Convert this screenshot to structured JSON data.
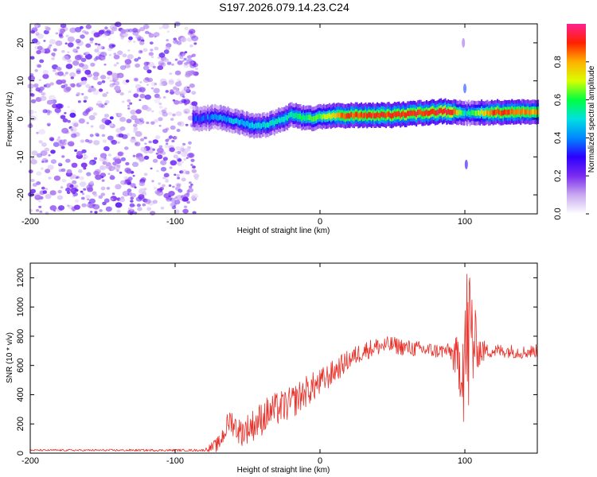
{
  "chart_data": [
    {
      "type": "heatmap",
      "title": "S197.2026.079.14.23.C24",
      "xlabel": "Height of straight line (km)",
      "ylabel": "Frequency (Hz)",
      "xlim": [
        -200,
        150
      ],
      "ylim": [
        -25,
        25
      ],
      "xticks": [
        -200,
        -100,
        0,
        100
      ],
      "xtick_labels": [
        "-200",
        "-100",
        "0",
        "100"
      ],
      "yticks": [
        -20,
        -10,
        0,
        10,
        20
      ],
      "ytick_labels": [
        "-20",
        "-10",
        "0",
        "10",
        "20"
      ],
      "grid": false,
      "colorbar": {
        "label": "Normalized spectral amplitude",
        "range": [
          0,
          1
        ],
        "ticks": [
          0.0,
          0.2,
          0.4,
          0.6,
          0.8
        ],
        "tick_labels": [
          "0.0",
          "0.2",
          "0.4",
          "0.6",
          "0.8"
        ],
        "colors": [
          "#ffffff",
          "#c8a8f0",
          "#7b2cf0",
          "#2b00ff",
          "#0088ff",
          "#00e0e0",
          "#00ff40",
          "#d8ff00",
          "#ffb000",
          "#ff2000",
          "#ff2090"
        ]
      },
      "noise_region_x": [
        -200,
        -85
      ],
      "noise_amplitude_range": [
        0.05,
        0.25
      ],
      "signal_band": {
        "center_freq_hz": [
          {
            "x": -85,
            "y": 0.0
          },
          {
            "x": -70,
            "y": 0.5
          },
          {
            "x": -55,
            "y": -1.0
          },
          {
            "x": -45,
            "y": -2.0
          },
          {
            "x": -35,
            "y": -1.5
          },
          {
            "x": -20,
            "y": 1.0
          },
          {
            "x": -10,
            "y": 0.0
          },
          {
            "x": 0,
            "y": 0.5
          },
          {
            "x": 20,
            "y": 1.0
          },
          {
            "x": 50,
            "y": 1.0
          },
          {
            "x": 85,
            "y": 2.0
          },
          {
            "x": 100,
            "y": 1.5
          },
          {
            "x": 150,
            "y": 2.0
          }
        ],
        "amplitude": [
          {
            "x": -85,
            "y": 0.35
          },
          {
            "x": -60,
            "y": 0.45
          },
          {
            "x": -40,
            "y": 0.5
          },
          {
            "x": -20,
            "y": 0.55
          },
          {
            "x": 0,
            "y": 0.65
          },
          {
            "x": 15,
            "y": 0.85
          },
          {
            "x": 40,
            "y": 0.9
          },
          {
            "x": 70,
            "y": 0.9
          },
          {
            "x": 90,
            "y": 0.95
          },
          {
            "x": 100,
            "y": 0.5
          },
          {
            "x": 120,
            "y": 0.9
          },
          {
            "x": 150,
            "y": 0.8
          }
        ]
      }
    },
    {
      "type": "line",
      "title": "",
      "xlabel": "Height of straight line (km)",
      "ylabel": "SNR (10 * v/v)",
      "xlim": [
        -200,
        150
      ],
      "ylim": [
        0,
        1300
      ],
      "xticks": [
        -200,
        -100,
        0,
        100
      ],
      "xtick_labels": [
        "-200",
        "-100",
        "0",
        "100"
      ],
      "yticks": [
        0,
        200,
        400,
        600,
        800,
        1000,
        1200
      ],
      "ytick_labels": [
        "0",
        "200",
        "400",
        "600",
        "800",
        "1000",
        "1200"
      ],
      "grid": false,
      "series": [
        {
          "name": "SNR",
          "color": "#e8312a",
          "envelope": [
            {
              "x": -200,
              "y": 20
            },
            {
              "x": -80,
              "y": 20
            },
            {
              "x": -70,
              "y": 60
            },
            {
              "x": -62,
              "y": 230
            },
            {
              "x": -55,
              "y": 140
            },
            {
              "x": -45,
              "y": 200
            },
            {
              "x": -35,
              "y": 280
            },
            {
              "x": -20,
              "y": 340
            },
            {
              "x": -10,
              "y": 420
            },
            {
              "x": 0,
              "y": 480
            },
            {
              "x": 10,
              "y": 560
            },
            {
              "x": 20,
              "y": 640
            },
            {
              "x": 30,
              "y": 700
            },
            {
              "x": 40,
              "y": 730
            },
            {
              "x": 50,
              "y": 740
            },
            {
              "x": 60,
              "y": 720
            },
            {
              "x": 70,
              "y": 710
            },
            {
              "x": 80,
              "y": 700
            },
            {
              "x": 90,
              "y": 700
            },
            {
              "x": 96,
              "y": 600
            },
            {
              "x": 100,
              "y": 700
            },
            {
              "x": 104,
              "y": 800
            },
            {
              "x": 110,
              "y": 700
            },
            {
              "x": 120,
              "y": 700
            },
            {
              "x": 130,
              "y": 700
            },
            {
              "x": 140,
              "y": 690
            },
            {
              "x": 150,
              "y": 700
            }
          ],
          "noise_amplitude": [
            {
              "x": -200,
              "y": 6
            },
            {
              "x": -80,
              "y": 8
            },
            {
              "x": -65,
              "y": 80
            },
            {
              "x": -40,
              "y": 120
            },
            {
              "x": -10,
              "y": 110
            },
            {
              "x": 20,
              "y": 70
            },
            {
              "x": 50,
              "y": 60
            },
            {
              "x": 90,
              "y": 50
            },
            {
              "x": 97,
              "y": 250
            },
            {
              "x": 100,
              "y": 600
            },
            {
              "x": 104,
              "y": 600
            },
            {
              "x": 108,
              "y": 150
            },
            {
              "x": 115,
              "y": 50
            },
            {
              "x": 150,
              "y": 45
            }
          ]
        }
      ]
    }
  ]
}
